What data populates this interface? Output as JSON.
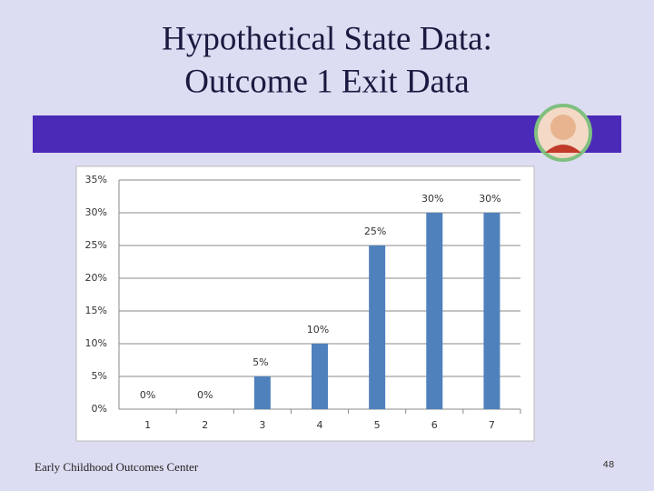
{
  "slide": {
    "title": [
      "Hypothetical State Data:",
      "Outcome 1 Exit Data"
    ],
    "footer": "Early Childhood Outcomes Center",
    "page_number": "48"
  },
  "chart_data": {
    "type": "bar",
    "categories": [
      "1",
      "2",
      "3",
      "4",
      "5",
      "6",
      "7"
    ],
    "values": [
      0,
      0,
      5,
      10,
      25,
      30,
      30
    ],
    "value_labels": [
      "0%",
      "0%",
      "5%",
      "10%",
      "25%",
      "30%",
      "30%"
    ],
    "color": "#4f81bd",
    "ylim": [
      0,
      35
    ],
    "yticks": [
      {
        "value": 0,
        "label": "0%"
      },
      {
        "value": 5,
        "label": "5%"
      },
      {
        "value": 10,
        "label": "10%"
      },
      {
        "value": 15,
        "label": "15%"
      },
      {
        "value": 20,
        "label": "20%"
      },
      {
        "value": 25,
        "label": "25%"
      },
      {
        "value": 30,
        "label": "30%"
      },
      {
        "value": 35,
        "label": "35%"
      }
    ],
    "grid": true
  }
}
